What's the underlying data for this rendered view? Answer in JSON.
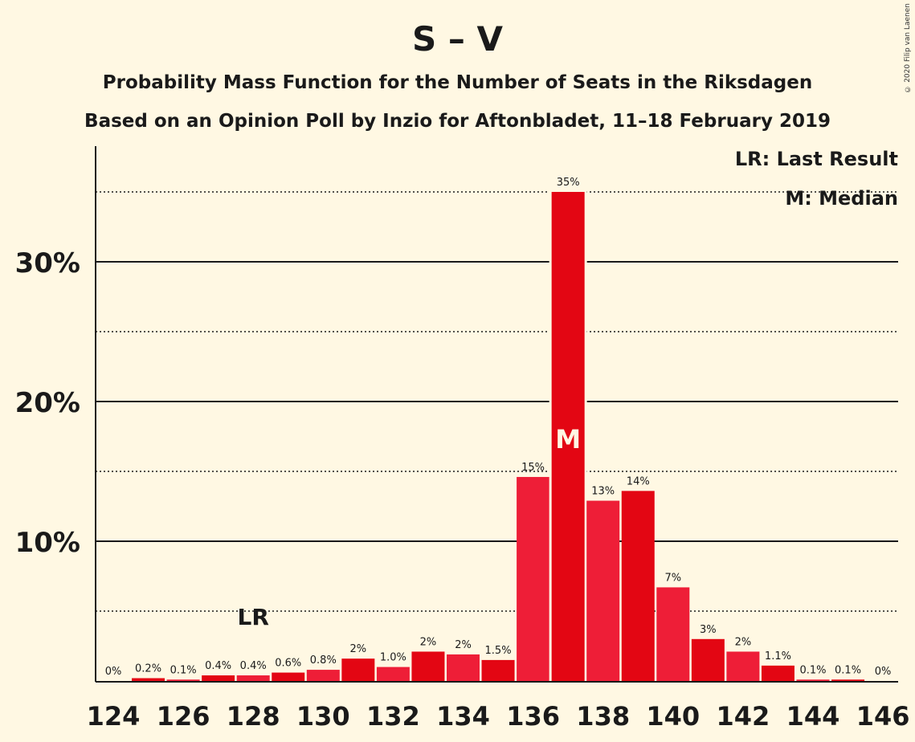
{
  "title": "S – V",
  "subtitle1": "Probability Mass Function for the Number of Seats in the Riksdagen",
  "subtitle2": "Based on an Opinion Poll by Inzio for Aftonbladet, 11–18 February 2019",
  "copyright": "© 2020 Filip van Laenen",
  "legend": {
    "last_result": "LR: Last Result",
    "median": "M: Median"
  },
  "colors": {
    "background": "#fff8e3",
    "bar_primary": "#e30613",
    "bar_secondary": "#ee1e37",
    "text": "#1a1a1a"
  },
  "chart_data": {
    "type": "bar",
    "x": [
      124,
      125,
      126,
      127,
      128,
      129,
      130,
      131,
      132,
      133,
      134,
      135,
      136,
      137,
      138,
      139,
      140,
      141,
      142,
      143,
      144,
      145,
      146
    ],
    "values": [
      0,
      0.2,
      0.1,
      0.4,
      0.4,
      0.6,
      0.8,
      1.6,
      1.0,
      2.1,
      1.9,
      1.5,
      14.6,
      35.0,
      12.9,
      13.6,
      6.7,
      3.0,
      2.1,
      1.1,
      0.1,
      0.1,
      0
    ],
    "labels": [
      "0%",
      "0.2%",
      "0.1%",
      "0.4%",
      "0.4%",
      "0.6%",
      "0.8%",
      "2%",
      "1.0%",
      "2%",
      "2%",
      "1.5%",
      "15%",
      "35%",
      "13%",
      "14%",
      "7%",
      "3%",
      "2%",
      "1.1%",
      "0.1%",
      "0.1%",
      "0%"
    ],
    "xticks": [
      124,
      126,
      128,
      130,
      132,
      134,
      136,
      138,
      140,
      142,
      144,
      146
    ],
    "yticks": [
      10,
      20,
      30
    ],
    "ytick_labels": [
      "10%",
      "20%",
      "30%"
    ],
    "minor_gridlines": [
      5,
      15,
      25,
      35
    ],
    "ylim": [
      0,
      38
    ],
    "last_result": 128,
    "last_result_label": "LR",
    "median": 137,
    "median_label": "M"
  }
}
